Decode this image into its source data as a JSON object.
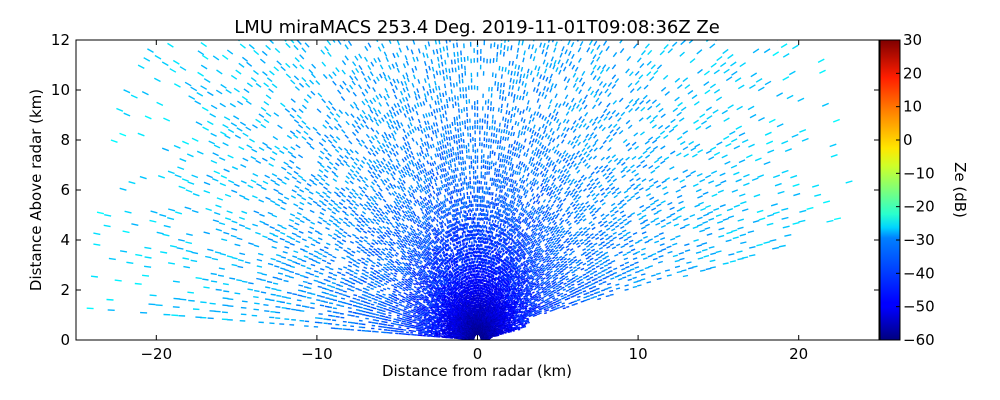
{
  "chart_data": {
    "type": "heatmap",
    "title": "LMU miraMACS 253.4 Deg. 2019-11-01T09:08:36Z  Ze",
    "xlabel": "Distance from radar (km)",
    "ylabel": "Distance Above radar  (km)",
    "xlim": [
      -25,
      25
    ],
    "ylim": [
      0,
      12
    ],
    "x_ticks": [
      -20,
      -10,
      0,
      10,
      20
    ],
    "x_tick_labels": [
      "−20",
      "−10",
      "0",
      "10",
      "20"
    ],
    "y_ticks": [
      0,
      2,
      4,
      6,
      8,
      10,
      12
    ],
    "y_tick_labels": [
      "0",
      "2",
      "4",
      "6",
      "8",
      "10",
      "12"
    ],
    "grid": false,
    "colorbar": {
      "label": "Ze (dB)",
      "colormap": "jet",
      "range": [
        -60,
        30
      ],
      "ticks": [
        30,
        20,
        10,
        0,
        -10,
        -20,
        -30,
        -40,
        -50,
        -60
      ],
      "tick_labels": [
        "30",
        "20",
        "10",
        "0",
        "−10",
        "−20",
        "−30",
        "−40",
        "−50",
        "−60"
      ]
    },
    "scan": {
      "description": "RHI scan",
      "radar_position_km": [
        0,
        0
      ],
      "max_range_km": 24.5,
      "elevation_range_deg": [
        3,
        177
      ],
      "low_angle_cutoff_right": {
        "from": [
          3.2,
          0.9
        ],
        "to": [
          23.4,
          4.3
        ]
      },
      "reflectivity_profile": [
        {
          "range_km": 0.3,
          "ze_db": -58
        },
        {
          "range_km": 1.5,
          "ze_db": -52
        },
        {
          "range_km": 3,
          "ze_db": -46
        },
        {
          "range_km": 6,
          "ze_db": -40
        },
        {
          "range_km": 10,
          "ze_db": -36
        },
        {
          "range_km": 16,
          "ze_db": -32
        },
        {
          "range_km": 24,
          "ze_db": -29
        }
      ]
    }
  }
}
